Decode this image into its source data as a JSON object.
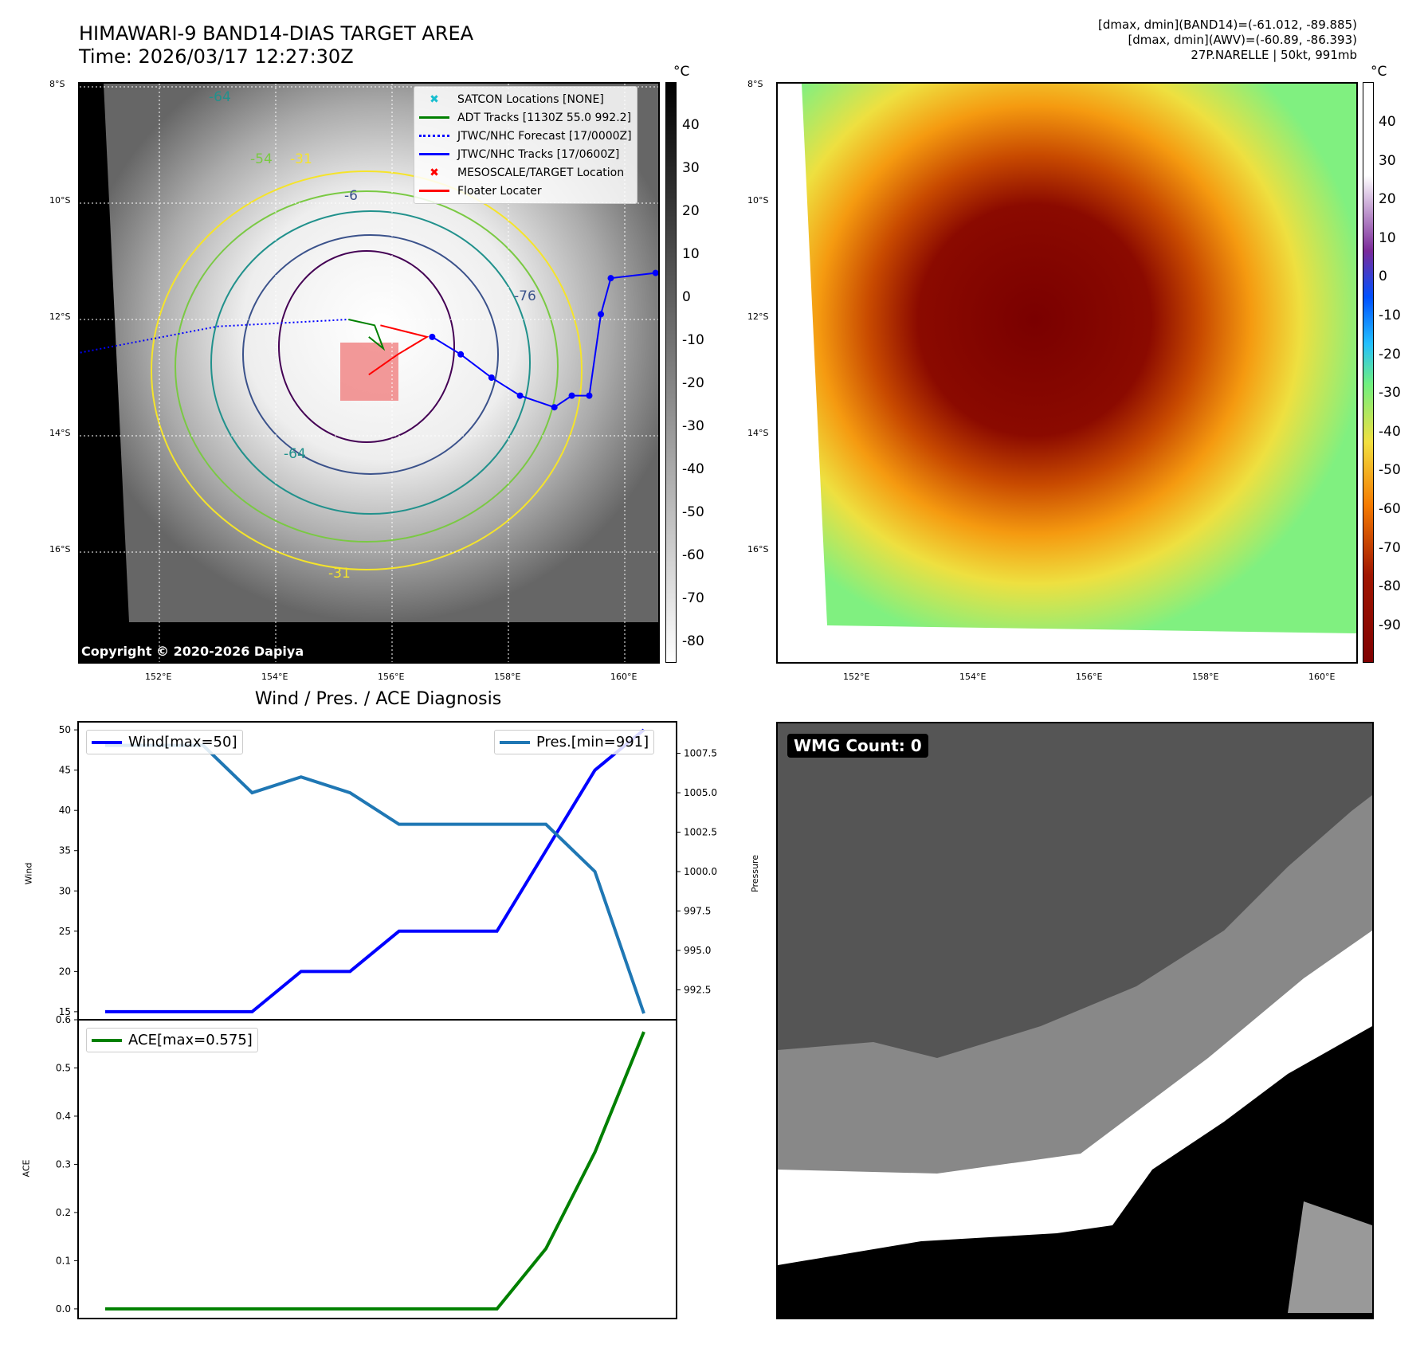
{
  "header": {
    "title": "HIMAWARI-9 BAND14-DIAS TARGET AREA",
    "time": "Time: 2026/03/17 12:27:30Z",
    "info": [
      "[dmax, dmin](BAND14)=(-61.012, -89.885)",
      "[dmax, dmin](AWV)=(-60.89, -86.393)",
      "27P.NARELLE | 50kt, 991mb"
    ]
  },
  "map": {
    "lat_ticks": [
      "8°S",
      "10°S",
      "12°S",
      "14°S",
      "16°S"
    ],
    "lon_ticks": [
      "152°E",
      "154°E",
      "156°E",
      "158°E",
      "160°E"
    ],
    "unit": "°C",
    "copyright": "Copyright © 2020-2026 Dapiya",
    "contour_labels": [
      "-64",
      "-54",
      "-31",
      "-76",
      "-6",
      "-64",
      "-31"
    ],
    "legend": [
      "SATCON Locations [NONE]",
      "ADT Tracks [1130Z 55.0 992.2]",
      "JTWC/NHC Forecast [17/0000Z]",
      "JTWC/NHC Tracks [17/0600Z]",
      "MESOSCALE/TARGET Location",
      "Floater Locater"
    ],
    "cbar_left": [
      "40",
      "30",
      "20",
      "10",
      "0",
      "-10",
      "-20",
      "-30",
      "-40",
      "-50",
      "-60",
      "-70",
      "-80"
    ],
    "cbar_right": [
      "40",
      "30",
      "20",
      "10",
      "0",
      "-10",
      "-20",
      "-30",
      "-40",
      "-50",
      "-60",
      "-70",
      "-80",
      "-90"
    ],
    "jtwc_track": [
      [
        160.53,
        -11.2
      ],
      [
        159.76,
        -11.29
      ],
      [
        159.59,
        -11.91
      ],
      [
        159.39,
        -13.31
      ],
      [
        159.09,
        -13.31
      ],
      [
        158.79,
        -13.51
      ],
      [
        158.2,
        -13.31
      ],
      [
        157.71,
        -13.0
      ],
      [
        157.18,
        -12.6
      ],
      [
        156.69,
        -12.3
      ]
    ],
    "forecast": [
      [
        150.64,
        -12.57
      ],
      [
        153.0,
        -12.12
      ],
      [
        155.25,
        -12.0
      ]
    ],
    "adt": [
      [
        155.25,
        -12.0
      ],
      [
        155.7,
        -12.1
      ],
      [
        155.85,
        -12.5
      ],
      [
        155.6,
        -12.3
      ]
    ],
    "floater": [
      [
        155.8,
        -12.1
      ],
      [
        156.6,
        -12.3
      ],
      [
        156.1,
        -12.6
      ],
      [
        155.6,
        -12.95
      ]
    ],
    "colors": {
      "jtwc": "#0000ff",
      "adt": "#008000",
      "floater": "#ff0000"
    }
  },
  "chart_data": [
    {
      "type": "line",
      "title": "Wind / Pres. / ACE Diagnosis",
      "ylabel": "Wind",
      "y2label": "Pressure",
      "ylim": [
        14,
        51
      ],
      "y2lim": [
        990.6,
        1009.5
      ],
      "yticks": [
        "15",
        "20",
        "25",
        "30",
        "35",
        "40",
        "45",
        "50"
      ],
      "y2ticks": [
        "992.5",
        "995.0",
        "997.5",
        "1000.0",
        "1002.5",
        "1005.0",
        "1007.5"
      ],
      "series": [
        {
          "name": "Wind[max=50]",
          "axis": "left",
          "color": "#0000ff",
          "values": [
            15,
            15,
            15,
            15,
            20,
            20,
            25,
            25,
            25,
            35,
            45,
            50
          ]
        },
        {
          "name": "Pres.[min=991]",
          "axis": "right",
          "color": "#1f77b4",
          "values": [
            1008,
            1008,
            1008,
            1005,
            1006,
            1005,
            1003,
            1003,
            1003,
            1003,
            1000,
            991
          ]
        }
      ]
    },
    {
      "type": "line",
      "ylabel": "ACE",
      "ylim": [
        -0.02,
        0.6
      ],
      "yticks": [
        "0.0",
        "0.1",
        "0.2",
        "0.3",
        "0.4",
        "0.5",
        "0.6"
      ],
      "series": [
        {
          "name": "ACE[max=0.575]",
          "color": "#008000",
          "values": [
            0,
            0,
            0,
            0,
            0,
            0,
            0,
            0,
            0,
            0.125,
            0.325,
            0.575
          ]
        }
      ]
    }
  ],
  "wmg": {
    "label": "WMG Count: 0"
  }
}
